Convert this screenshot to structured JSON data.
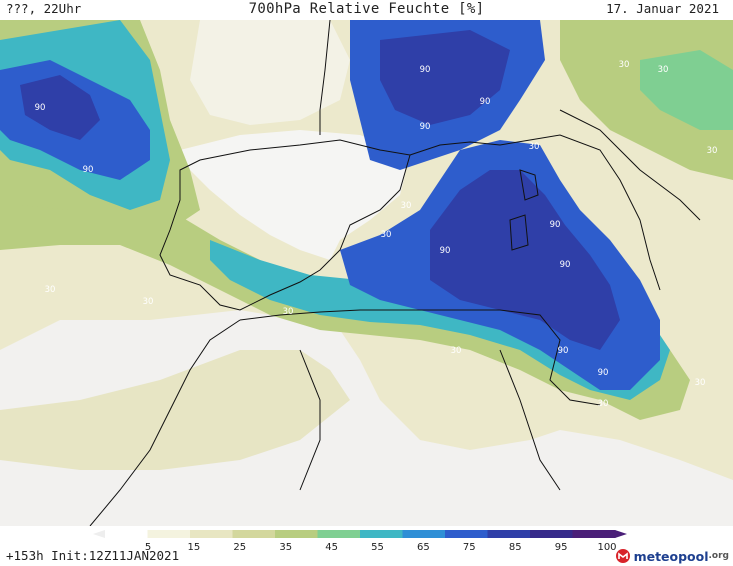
{
  "header": {
    "left": "???, 22Uhr",
    "title": "700hPa Relative Feuchte [%]",
    "date": "17. Januar 2021"
  },
  "footer": {
    "left": "+153h  Init:12Z11JAN2021",
    "logo_text": "meteopool",
    "logo_suffix": ".org"
  },
  "legend": {
    "ticks": [
      "5",
      "15",
      "25",
      "35",
      "45",
      "55",
      "65",
      "75",
      "85",
      "95",
      "100"
    ],
    "colors": [
      "#ffffff",
      "#f4f3df",
      "#e8e6c2",
      "#d3d79d",
      "#b8cd80",
      "#7fcf92",
      "#3fb7c4",
      "#2f8fd6",
      "#2e5dcc",
      "#2f3fa8",
      "#362a8a",
      "#4a1f78"
    ]
  },
  "map": {
    "contour_labels": [
      {
        "text": "90"
      },
      {
        "text": "90"
      },
      {
        "text": "90"
      },
      {
        "text": "90"
      },
      {
        "text": "90"
      },
      {
        "text": "90"
      },
      {
        "text": "90"
      },
      {
        "text": "90"
      },
      {
        "text": "90"
      },
      {
        "text": "90"
      },
      {
        "text": "30"
      },
      {
        "text": "30"
      },
      {
        "text": "30"
      },
      {
        "text": "30"
      },
      {
        "text": "30"
      },
      {
        "text": "30"
      },
      {
        "text": "30"
      },
      {
        "text": "30"
      },
      {
        "text": "30"
      },
      {
        "text": "30"
      },
      {
        "text": "30"
      },
      {
        "text": "30"
      }
    ]
  },
  "colors": {
    "land_line": "#111111",
    "brand_red": "#d8232a",
    "brand_blue": "#1d3f8f"
  }
}
